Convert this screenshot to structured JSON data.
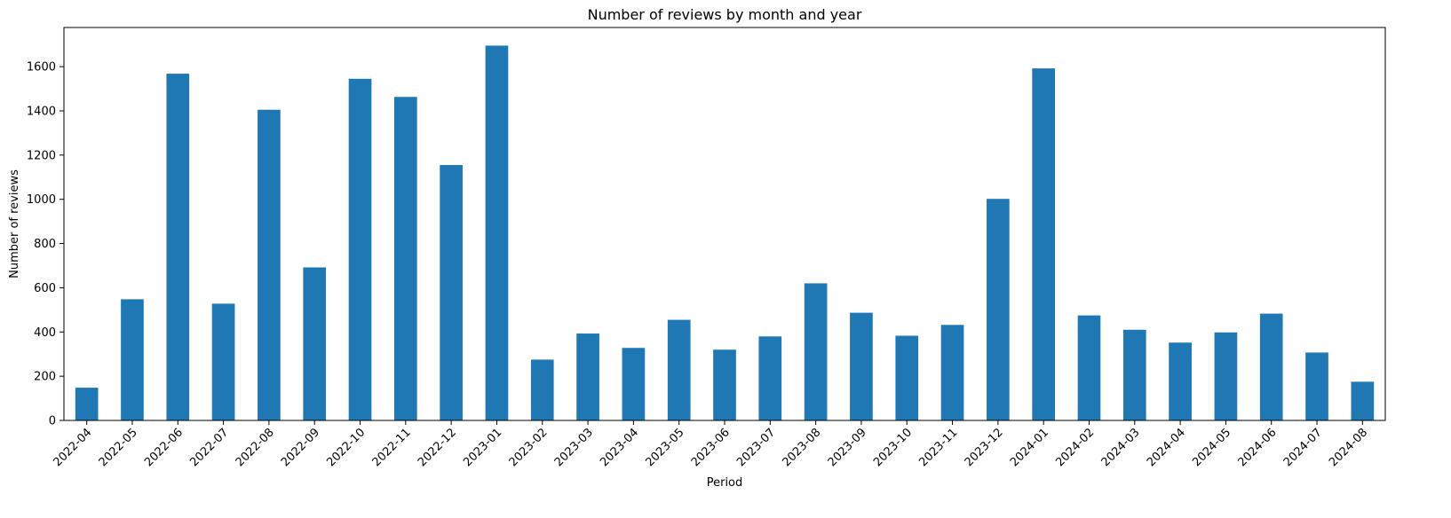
{
  "chart_data": {
    "type": "bar",
    "title": "Number of reviews by month and year",
    "xlabel": "Period",
    "ylabel": "Number of reviews",
    "categories": [
      "2022-04",
      "2022-05",
      "2022-06",
      "2022-07",
      "2022-08",
      "2022-09",
      "2022-10",
      "2022-11",
      "2022-12",
      "2023-01",
      "2023-02",
      "2023-03",
      "2023-04",
      "2023-05",
      "2023-06",
      "2023-07",
      "2023-08",
      "2023-09",
      "2023-10",
      "2023-11",
      "2023-12",
      "2024-01",
      "2024-02",
      "2024-03",
      "2024-04",
      "2024-05",
      "2024-06",
      "2024-07",
      "2024-08"
    ],
    "values": [
      148,
      548,
      1568,
      528,
      1405,
      692,
      1545,
      1463,
      1155,
      1695,
      275,
      393,
      328,
      455,
      320,
      380,
      620,
      487,
      383,
      432,
      1002,
      1592,
      475,
      410,
      352,
      398,
      483,
      307,
      175
    ],
    "ylim": [
      0,
      1777
    ],
    "yticks": [
      0,
      200,
      400,
      600,
      800,
      1000,
      1200,
      1400,
      1600
    ],
    "xtick_rotation_deg": 45,
    "grid": false,
    "legend": "none",
    "bar_color": "#1f77b4"
  }
}
